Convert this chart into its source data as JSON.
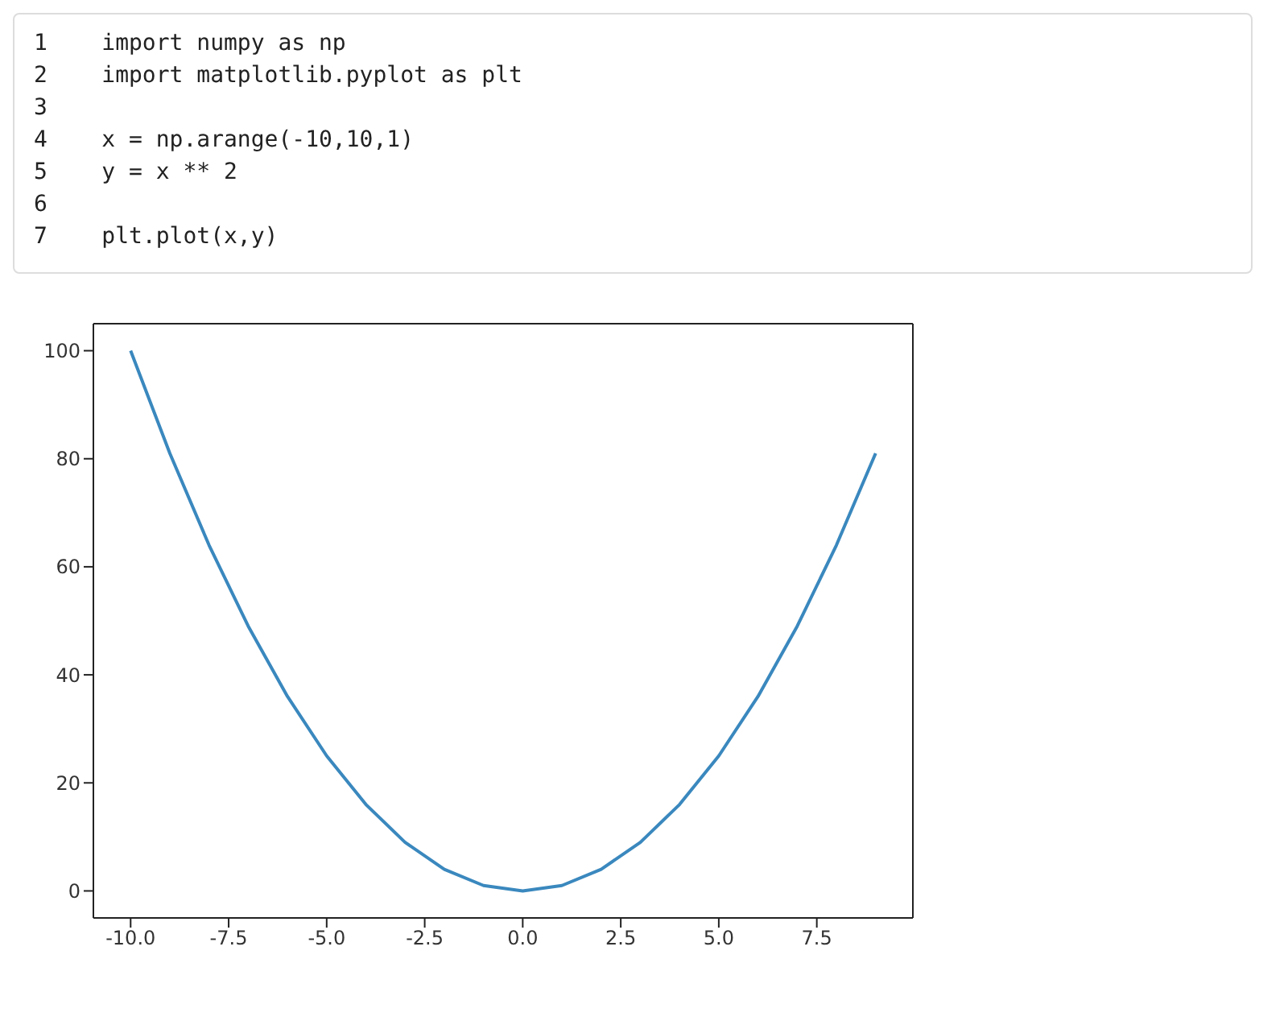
{
  "chart_data": {
    "type": "line",
    "annotations": [
      "1    import numpy as np",
      "2    import matplotlib.pyplot as plt",
      "3",
      "4    x = np.arange(-10,10,1)",
      "5    y = x ** 2",
      "6",
      "7    plt.plot(x,y)"
    ],
    "x": [
      -10,
      -9,
      -8,
      -7,
      -6,
      -5,
      -4,
      -3,
      -2,
      -1,
      0,
      1,
      2,
      3,
      4,
      5,
      6,
      7,
      8,
      9
    ],
    "values": [
      100,
      81,
      64,
      49,
      36,
      25,
      16,
      9,
      4,
      1,
      0,
      1,
      4,
      9,
      16,
      25,
      36,
      49,
      64,
      81
    ],
    "color": "#3a88be",
    "xlim": [
      -10.95,
      9.95
    ],
    "xticks": [
      {
        "value": -10,
        "label": "-10.0"
      },
      {
        "value": -7.5,
        "label": "-7.5"
      },
      {
        "value": -5,
        "label": "-5.0"
      },
      {
        "value": -2.5,
        "label": "-2.5"
      },
      {
        "value": 0,
        "label": "0.0"
      },
      {
        "value": 2.5,
        "label": "2.5"
      },
      {
        "value": 5,
        "label": "5.0"
      },
      {
        "value": 7.5,
        "label": "7.5"
      }
    ],
    "ylim": [
      -5,
      105
    ],
    "yticks": [
      0,
      20,
      40,
      60,
      80,
      100
    ],
    "grid": false,
    "legend": false,
    "marker": "none",
    "line_style": "solid"
  }
}
